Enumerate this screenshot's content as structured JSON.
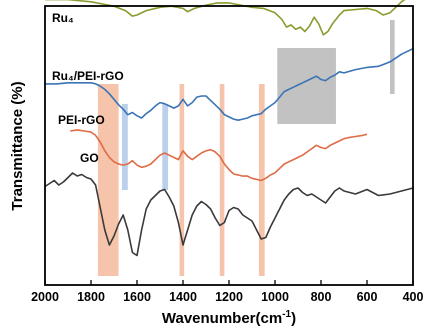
{
  "chart_data": {
    "type": "line",
    "title": "",
    "xlabel": "Wavenumber(cm",
    "xlabel_sup": "-1",
    "xlabel_close": ")",
    "ylabel": "Transmittance (%)",
    "x_reversed": true,
    "xlim": [
      2000,
      400
    ],
    "x_ticks": [
      2000,
      1800,
      1600,
      1400,
      1200,
      1000,
      800,
      600,
      400
    ],
    "y_ticks_shown": false,
    "grid": false,
    "legend": "labels placed next to each curve",
    "highlight_bands": [
      {
        "color": "#f4b596",
        "x": [
          1770,
          1680
        ]
      },
      {
        "color": "#f4b596",
        "x": [
          1415,
          1395
        ]
      },
      {
        "color": "#f4b596",
        "x": [
          1240,
          1220
        ]
      },
      {
        "color": "#f4b596",
        "x": [
          1070,
          1045
        ]
      },
      {
        "color": "#a9c4e6",
        "x": [
          1665,
          1640
        ]
      },
      {
        "color": "#a9c4e6",
        "x": [
          1490,
          1465
        ]
      },
      {
        "color": "#b3b3b3",
        "x": [
          990,
          735
        ]
      },
      {
        "color": "#b3b3b3",
        "x": [
          500,
          480
        ]
      }
    ],
    "series": [
      {
        "name": "Ru₄",
        "color": "#8a9a2e",
        "x": [
          2000,
          1900,
          1800,
          1750,
          1700,
          1650,
          1620,
          1600,
          1560,
          1500,
          1450,
          1400,
          1380,
          1350,
          1300,
          1250,
          1200,
          1150,
          1100,
          1050,
          1000,
          970,
          950,
          930,
          910,
          890,
          870,
          850,
          830,
          810,
          790,
          770,
          750,
          720,
          700,
          650,
          600,
          560,
          530,
          500,
          490,
          470,
          450,
          430,
          410,
          400
        ],
        "y": [
          84,
          84,
          82,
          80,
          78,
          74,
          69,
          70,
          74,
          77,
          78,
          76,
          73,
          76,
          79,
          81,
          81,
          79,
          77,
          76,
          72,
          66,
          59,
          61,
          57,
          59,
          55,
          60,
          68,
          62,
          52,
          55,
          62,
          70,
          74,
          75,
          76,
          74,
          70,
          72,
          74,
          78,
          82,
          85,
          87,
          88
        ]
      },
      {
        "name": "Ru₄/PEI-rGO",
        "color": "#3a74b5",
        "x": [
          2000,
          1950,
          1900,
          1850,
          1800,
          1780,
          1760,
          1740,
          1720,
          1700,
          1680,
          1660,
          1640,
          1620,
          1600,
          1580,
          1560,
          1540,
          1520,
          1500,
          1480,
          1460,
          1440,
          1420,
          1400,
          1380,
          1360,
          1340,
          1320,
          1300,
          1280,
          1260,
          1240,
          1220,
          1200,
          1180,
          1160,
          1140,
          1120,
          1100,
          1080,
          1060,
          1040,
          1020,
          1000,
          980,
          960,
          940,
          920,
          900,
          880,
          860,
          840,
          820,
          800,
          780,
          760,
          740,
          720,
          700,
          650,
          600,
          550,
          500,
          450,
          400
        ],
        "y": [
          51,
          51,
          52,
          52,
          52,
          51,
          49,
          46,
          42,
          37,
          32,
          28,
          23,
          25,
          22,
          20,
          24,
          27,
          31,
          34,
          33,
          31,
          29,
          31,
          37,
          31,
          34,
          39,
          40,
          40,
          36,
          32,
          28,
          23,
          21,
          19,
          18,
          19,
          20,
          22,
          23,
          24,
          28,
          31,
          34,
          39,
          44,
          46,
          48,
          50,
          52,
          54,
          56,
          58,
          55,
          54,
          57,
          59,
          62,
          61,
          64,
          66,
          67,
          71,
          78,
          83
        ]
      },
      {
        "name": "PEI-rGO",
        "color": "#df6b47",
        "x": [
          1890,
          1860,
          1830,
          1800,
          1780,
          1760,
          1740,
          1720,
          1700,
          1680,
          1660,
          1640,
          1620,
          1600,
          1580,
          1560,
          1540,
          1520,
          1500,
          1480,
          1460,
          1440,
          1420,
          1400,
          1380,
          1360,
          1340,
          1320,
          1300,
          1280,
          1260,
          1240,
          1220,
          1200,
          1180,
          1160,
          1140,
          1120,
          1100,
          1080,
          1060,
          1040,
          1020,
          1000,
          980,
          960,
          940,
          920,
          900,
          880,
          860,
          840,
          820,
          800,
          780,
          760,
          740,
          720,
          700,
          680,
          650,
          620,
          600
        ],
        "y": [
          40,
          41,
          40,
          39,
          36,
          30,
          22,
          16,
          12,
          10,
          9,
          10,
          13,
          9,
          7,
          8,
          10,
          14,
          18,
          20,
          18,
          16,
          14,
          22,
          17,
          14,
          17,
          20,
          22,
          23,
          21,
          17,
          10,
          5,
          1,
          0,
          -1,
          -1,
          -3,
          -4,
          -5,
          -3,
          0,
          2,
          6,
          10,
          12,
          14,
          16,
          18,
          21,
          24,
          27,
          25,
          24,
          27,
          29,
          31,
          33,
          34,
          35,
          36,
          37
        ]
      },
      {
        "name": "GO",
        "color": "#3a3a3a",
        "x": [
          2000,
          1980,
          1960,
          1940,
          1920,
          1900,
          1880,
          1860,
          1840,
          1820,
          1800,
          1780,
          1760,
          1740,
          1720,
          1700,
          1680,
          1660,
          1640,
          1620,
          1600,
          1580,
          1560,
          1540,
          1520,
          1500,
          1480,
          1460,
          1440,
          1420,
          1400,
          1380,
          1360,
          1340,
          1320,
          1300,
          1280,
          1260,
          1240,
          1220,
          1200,
          1180,
          1160,
          1140,
          1120,
          1100,
          1080,
          1060,
          1040,
          1020,
          1000,
          980,
          960,
          940,
          920,
          900,
          880,
          860,
          840,
          820,
          800,
          780,
          760,
          740,
          720,
          700,
          650,
          600,
          550,
          500,
          450,
          400
        ],
        "y": [
          9,
          11,
          13,
          10,
          12,
          15,
          18,
          16,
          17,
          15,
          14,
          10,
          -5,
          -20,
          -30,
          -24,
          -16,
          -10,
          -20,
          -35,
          -37,
          -20,
          -6,
          0,
          3,
          6,
          7,
          2,
          -4,
          -15,
          -30,
          -20,
          -10,
          -4,
          -1,
          -3,
          -6,
          -12,
          -17,
          -15,
          -7,
          -5,
          -6,
          -10,
          -12,
          -14,
          -20,
          -26,
          -25,
          -18,
          -12,
          -6,
          0,
          4,
          7,
          8,
          5,
          3,
          4,
          2,
          0,
          -2,
          2,
          6,
          8,
          6,
          4,
          7,
          3,
          4,
          6,
          8
        ]
      }
    ]
  }
}
